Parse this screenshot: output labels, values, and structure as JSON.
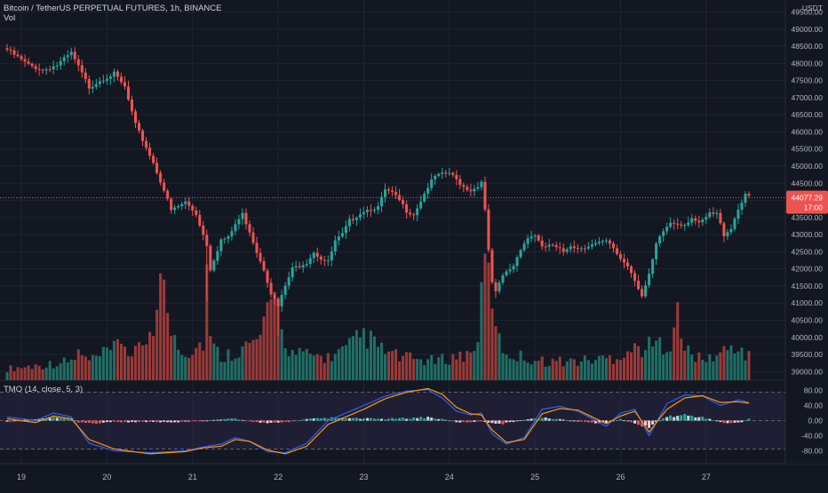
{
  "header": {
    "symbol_line": "Bitcoin / TetherUS PERPETUAL FUTURES, 1h, BINANCE",
    "volume_label": "Vol"
  },
  "indicator": {
    "label": "TMO (14, close, 5, 3)"
  },
  "colors": {
    "background": "#131722",
    "grid": "#1f2433",
    "up": "#26a69a",
    "down": "#ef5350",
    "vol_up": "#1f6f66",
    "vol_down": "#9a3a38",
    "tmo_line_1": "#2962ff",
    "tmo_line_2": "#ff9800",
    "tmo_band": "#2a2544",
    "price_label": "#ef5350"
  },
  "chart_data": [
    {
      "type": "candlestick",
      "title": "Bitcoin / TetherUS PERPETUAL FUTURES, 1h, BINANCE",
      "y_axis": {
        "unit": "USDT",
        "ylim": [
          38750,
          49850
        ],
        "tick_values": [
          49500,
          49000,
          48500,
          48000,
          47500,
          47000,
          46500,
          46000,
          45500,
          45000,
          44500,
          44000,
          43500,
          43000,
          42500,
          42000,
          41500,
          41000,
          40500,
          40000,
          39500,
          39000
        ],
        "tick_labels": [
          "49500.00",
          "49000.00",
          "48500.00",
          "48000.00",
          "47500.00",
          "47000.00",
          "46500.00",
          "46000.00",
          "45500.00",
          "45000.00",
          "44500.00",
          "44000.00",
          "43500.00",
          "43000.00",
          "42500.00",
          "42000.00",
          "41500.00",
          "41000.00",
          "40500.00",
          "40000.00",
          "39500.00",
          "39000.00"
        ]
      },
      "x_axis": {
        "tick_labels": [
          "19",
          "20",
          "21",
          "22",
          "23",
          "24",
          "25",
          "26",
          "27"
        ]
      },
      "last_price": {
        "value": 44077.29,
        "label": "44077.29",
        "countdown": "17:00"
      },
      "close_path": [
        [
          0,
          48400
        ],
        [
          6,
          47950
        ],
        [
          10,
          47800
        ],
        [
          14,
          47950
        ],
        [
          18,
          48300
        ],
        [
          21,
          47700
        ],
        [
          23,
          47300
        ],
        [
          26,
          47500
        ],
        [
          30,
          47700
        ],
        [
          33,
          47300
        ],
        [
          36,
          46200
        ],
        [
          39,
          45550
        ],
        [
          41,
          45100
        ],
        [
          44,
          44300
        ],
        [
          46,
          43700
        ],
        [
          50,
          43950
        ],
        [
          53,
          43600
        ],
        [
          56,
          42700
        ],
        [
          57,
          42000
        ],
        [
          60,
          42850
        ],
        [
          62,
          42900
        ],
        [
          64,
          43300
        ],
        [
          66,
          43600
        ],
        [
          68,
          43100
        ],
        [
          70,
          42500
        ],
        [
          72,
          42000
        ],
        [
          74,
          41300
        ],
        [
          76,
          40900
        ],
        [
          78,
          41500
        ],
        [
          80,
          42000
        ],
        [
          84,
          42200
        ],
        [
          86,
          42500
        ],
        [
          88,
          42300
        ],
        [
          90,
          42200
        ],
        [
          92,
          42800
        ],
        [
          94,
          43000
        ],
        [
          96,
          43400
        ],
        [
          100,
          43700
        ],
        [
          104,
          43800
        ],
        [
          106,
          44300
        ],
        [
          108,
          44200
        ],
        [
          110,
          44000
        ],
        [
          112,
          43700
        ],
        [
          114,
          43600
        ],
        [
          116,
          44000
        ],
        [
          118,
          44400
        ],
        [
          120,
          44700
        ],
        [
          124,
          44800
        ],
        [
          126,
          44600
        ],
        [
          128,
          44400
        ],
        [
          130,
          44300
        ],
        [
          132,
          44400
        ],
        [
          133,
          44600
        ],
        [
          134,
          43700
        ],
        [
          135,
          42500
        ],
        [
          136,
          41600
        ],
        [
          137,
          41300
        ],
        [
          139,
          41800
        ],
        [
          142,
          42100
        ],
        [
          144,
          42600
        ],
        [
          146,
          42900
        ],
        [
          148,
          43000
        ],
        [
          150,
          42600
        ],
        [
          152,
          42700
        ],
        [
          156,
          42500
        ],
        [
          158,
          42700
        ],
        [
          160,
          42600
        ],
        [
          164,
          42700
        ],
        [
          168,
          42800
        ],
        [
          170,
          42600
        ],
        [
          172,
          42300
        ],
        [
          174,
          42100
        ],
        [
          176,
          41700
        ],
        [
          178,
          41200
        ],
        [
          180,
          41800
        ],
        [
          182,
          42700
        ],
        [
          184,
          43100
        ],
        [
          186,
          43350
        ],
        [
          190,
          43300
        ],
        [
          192,
          43500
        ],
        [
          194,
          43300
        ],
        [
          195,
          43400
        ],
        [
          197,
          43600
        ],
        [
          199,
          43600
        ],
        [
          201,
          43000
        ],
        [
          203,
          43200
        ],
        [
          205,
          43750
        ],
        [
          207,
          44200
        ],
        [
          208,
          44077
        ]
      ],
      "spikes": [
        {
          "index": 56,
          "low": 41050
        },
        {
          "index": 76,
          "low": 40050
        },
        {
          "index": 137,
          "low": 41150
        }
      ],
      "volume_path": [
        [
          0,
          3
        ],
        [
          10,
          4
        ],
        [
          18,
          5
        ],
        [
          20,
          7
        ],
        [
          23,
          5
        ],
        [
          30,
          8
        ],
        [
          32,
          11
        ],
        [
          35,
          6
        ],
        [
          38,
          9
        ],
        [
          42,
          18
        ],
        [
          43,
          24
        ],
        [
          44,
          30
        ],
        [
          45,
          15
        ],
        [
          50,
          7
        ],
        [
          55,
          10
        ],
        [
          56,
          30
        ],
        [
          57,
          10
        ],
        [
          60,
          6
        ],
        [
          65,
          8
        ],
        [
          70,
          10
        ],
        [
          72,
          14
        ],
        [
          74,
          18
        ],
        [
          75,
          22
        ],
        [
          76,
          26
        ],
        [
          77,
          12
        ],
        [
          80,
          7
        ],
        [
          90,
          6
        ],
        [
          95,
          8
        ],
        [
          100,
          12
        ],
        [
          105,
          8
        ],
        [
          110,
          6
        ],
        [
          120,
          5
        ],
        [
          130,
          7
        ],
        [
          132,
          12
        ],
        [
          133,
          20
        ],
        [
          134,
          32
        ],
        [
          135,
          26
        ],
        [
          136,
          24
        ],
        [
          137,
          12
        ],
        [
          140,
          7
        ],
        [
          150,
          5
        ],
        [
          160,
          5
        ],
        [
          170,
          6
        ],
        [
          175,
          8
        ],
        [
          186,
          10
        ],
        [
          187,
          16
        ],
        [
          188,
          20
        ],
        [
          189,
          9
        ],
        [
          195,
          5
        ],
        [
          200,
          7
        ],
        [
          204,
          9
        ],
        [
          208,
          6
        ]
      ]
    },
    {
      "type": "line",
      "title": "TMO (14, close, 5, 3)",
      "ylim": [
        -100,
        100
      ],
      "tick_values": [
        80,
        40,
        0,
        -40,
        -80
      ],
      "tick_labels": [
        "80.00",
        "40.00",
        "0.00",
        "-40.00",
        "-80.00"
      ],
      "band": [
        -75,
        75
      ],
      "series": [
        {
          "values_path": [
            [
              0,
              10
            ],
            [
              8,
              0
            ],
            [
              13,
              20
            ],
            [
              18,
              10
            ],
            [
              23,
              -60
            ],
            [
              30,
              -80
            ],
            [
              40,
              -85
            ],
            [
              50,
              -80
            ],
            [
              55,
              -70
            ],
            [
              60,
              -62
            ],
            [
              64,
              -45
            ],
            [
              68,
              -55
            ],
            [
              73,
              -82
            ],
            [
              78,
              -85
            ],
            [
              84,
              -60
            ],
            [
              90,
              0
            ],
            [
              100,
              40
            ],
            [
              106,
              65
            ],
            [
              112,
              78
            ],
            [
              118,
              82
            ],
            [
              122,
              60
            ],
            [
              126,
              25
            ],
            [
              130,
              15
            ],
            [
              133,
              20
            ],
            [
              136,
              -35
            ],
            [
              140,
              -62
            ],
            [
              145,
              -45
            ],
            [
              150,
              30
            ],
            [
              155,
              38
            ],
            [
              160,
              25
            ],
            [
              164,
              5
            ],
            [
              168,
              -15
            ],
            [
              172,
              20
            ],
            [
              176,
              30
            ],
            [
              180,
              -40
            ],
            [
              185,
              45
            ],
            [
              190,
              68
            ],
            [
              195,
              65
            ],
            [
              200,
              40
            ],
            [
              205,
              55
            ],
            [
              208,
              48
            ]
          ]
        },
        {
          "values_path": [
            [
              0,
              5
            ],
            [
              8,
              -5
            ],
            [
              13,
              12
            ],
            [
              18,
              5
            ],
            [
              23,
              -50
            ],
            [
              30,
              -75
            ],
            [
              40,
              -88
            ],
            [
              50,
              -82
            ],
            [
              55,
              -72
            ],
            [
              60,
              -68
            ],
            [
              64,
              -50
            ],
            [
              68,
              -55
            ],
            [
              73,
              -78
            ],
            [
              78,
              -88
            ],
            [
              84,
              -68
            ],
            [
              90,
              -10
            ],
            [
              100,
              30
            ],
            [
              106,
              58
            ],
            [
              112,
              75
            ],
            [
              118,
              85
            ],
            [
              122,
              70
            ],
            [
              126,
              35
            ],
            [
              130,
              18
            ],
            [
              133,
              15
            ],
            [
              136,
              -25
            ],
            [
              140,
              -58
            ],
            [
              145,
              -50
            ],
            [
              150,
              18
            ],
            [
              155,
              32
            ],
            [
              160,
              28
            ],
            [
              164,
              10
            ],
            [
              168,
              -8
            ],
            [
              172,
              12
            ],
            [
              176,
              25
            ],
            [
              180,
              -30
            ],
            [
              185,
              30
            ],
            [
              190,
              60
            ],
            [
              195,
              66
            ],
            [
              200,
              48
            ],
            [
              205,
              50
            ],
            [
              208,
              46
            ]
          ]
        }
      ],
      "histogram_path": [
        [
          0,
          -4
        ],
        [
          6,
          3
        ],
        [
          13,
          8
        ],
        [
          18,
          6
        ],
        [
          20,
          -5
        ],
        [
          23,
          -8
        ],
        [
          30,
          -4
        ],
        [
          40,
          -5
        ],
        [
          50,
          -4
        ],
        [
          60,
          3
        ],
        [
          64,
          6
        ],
        [
          68,
          -3
        ],
        [
          73,
          -6
        ],
        [
          78,
          -5
        ],
        [
          84,
          4
        ],
        [
          90,
          8
        ],
        [
          100,
          6
        ],
        [
          106,
          5
        ],
        [
          112,
          7
        ],
        [
          118,
          10
        ],
        [
          122,
          4
        ],
        [
          126,
          -4
        ],
        [
          130,
          -6
        ],
        [
          133,
          -2
        ],
        [
          136,
          -10
        ],
        [
          140,
          -8
        ],
        [
          145,
          3
        ],
        [
          150,
          8
        ],
        [
          155,
          4
        ],
        [
          160,
          -3
        ],
        [
          164,
          -6
        ],
        [
          168,
          -8
        ],
        [
          172,
          4
        ],
        [
          176,
          -10
        ],
        [
          180,
          -18
        ],
        [
          185,
          12
        ],
        [
          190,
          16
        ],
        [
          195,
          10
        ],
        [
          200,
          -5
        ],
        [
          205,
          -8
        ],
        [
          208,
          5
        ]
      ]
    }
  ]
}
